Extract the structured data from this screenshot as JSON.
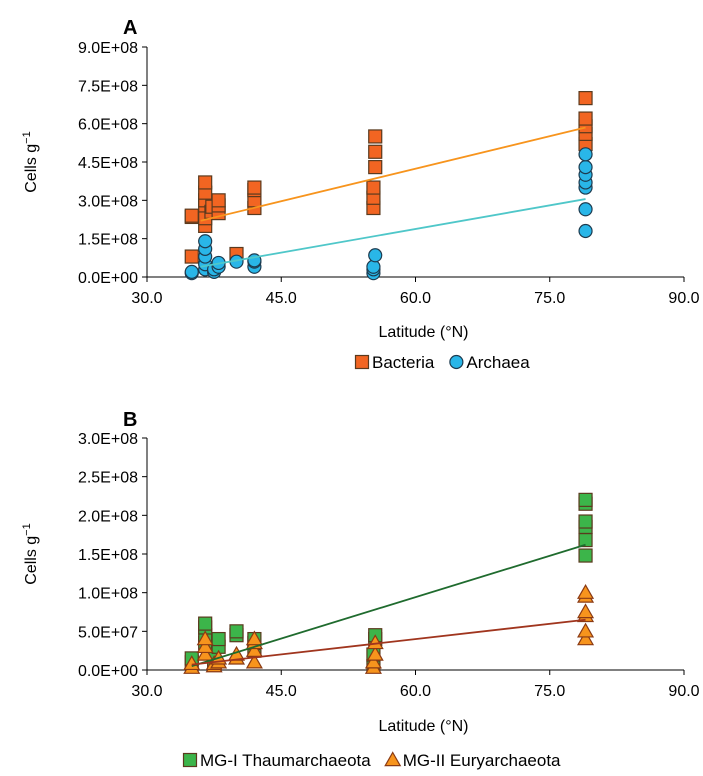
{
  "chart_data": [
    {
      "panel_label": "A",
      "type": "scatter",
      "ylabel": "Cells g",
      "ylabel_superscript": "−1",
      "xlabel": "Latitude (°N)",
      "xlim": [
        30,
        90
      ],
      "ylim": [
        0,
        900000000
      ],
      "x_ticks": [
        "30.0",
        "45.0",
        "60.0",
        "75.0",
        "90.0"
      ],
      "x_tick_values": [
        30,
        45,
        60,
        75,
        90
      ],
      "y_ticks": [
        "0.0E+00",
        "1.5E+08",
        "3.0E+08",
        "4.5E+08",
        "6.0E+08",
        "7.5E+08",
        "9.0E+08"
      ],
      "y_tick_values": [
        0,
        150000000,
        300000000,
        450000000,
        600000000,
        750000000,
        900000000
      ],
      "legend_position": "bottom",
      "series": [
        {
          "name": "Bacteria",
          "marker": "square",
          "color": "#f26522",
          "line_color": "#f7941d",
          "trendline": [
            [
              36,
              220000000
            ],
            [
              79,
              585000000
            ]
          ],
          "points": [
            [
              35,
              80000000
            ],
            [
              35,
              235000000
            ],
            [
              35,
              240000000
            ],
            [
              36.5,
              200000000
            ],
            [
              36.5,
              230000000
            ],
            [
              36.5,
              280000000
            ],
            [
              36.5,
              300000000
            ],
            [
              36.5,
              330000000
            ],
            [
              36.5,
              370000000
            ],
            [
              37.2,
              255000000
            ],
            [
              37.3,
              275000000
            ],
            [
              38,
              250000000
            ],
            [
              38,
              280000000
            ],
            [
              38,
              300000000
            ],
            [
              40,
              90000000
            ],
            [
              42,
              270000000
            ],
            [
              42,
              300000000
            ],
            [
              42,
              340000000
            ],
            [
              42,
              350000000
            ],
            [
              55.3,
              270000000
            ],
            [
              55.3,
              310000000
            ],
            [
              55.3,
              350000000
            ],
            [
              55.5,
              430000000
            ],
            [
              55.5,
              490000000
            ],
            [
              55.5,
              550000000
            ],
            [
              79,
              520000000
            ],
            [
              79,
              560000000
            ],
            [
              79,
              590000000
            ],
            [
              79,
              620000000
            ],
            [
              79,
              700000000
            ]
          ]
        },
        {
          "name": "Archaea",
          "marker": "circle",
          "color": "#29b6e8",
          "line_color": "#4fc7c9",
          "trendline": [
            [
              36,
              40000000
            ],
            [
              79,
              305000000
            ]
          ],
          "points": [
            [
              35,
              15000000
            ],
            [
              35,
              20000000
            ],
            [
              36.5,
              30000000
            ],
            [
              36.5,
              50000000
            ],
            [
              36.5,
              80000000
            ],
            [
              36.5,
              110000000
            ],
            [
              36.5,
              140000000
            ],
            [
              37.5,
              20000000
            ],
            [
              37.5,
              30000000
            ],
            [
              38,
              40000000
            ],
            [
              38,
              55000000
            ],
            [
              40,
              60000000
            ],
            [
              42,
              40000000
            ],
            [
              42,
              60000000
            ],
            [
              42,
              65000000
            ],
            [
              55.3,
              15000000
            ],
            [
              55.3,
              30000000
            ],
            [
              55.3,
              40000000
            ],
            [
              55.5,
              85000000
            ],
            [
              79,
              180000000
            ],
            [
              79,
              265000000
            ],
            [
              79,
              350000000
            ],
            [
              79,
              370000000
            ],
            [
              79,
              400000000
            ],
            [
              79,
              430000000
            ],
            [
              79,
              480000000
            ]
          ]
        }
      ]
    },
    {
      "panel_label": "B",
      "type": "scatter",
      "ylabel": "Cells g",
      "ylabel_superscript": "−1",
      "xlabel": "Latitude (°N)",
      "xlim": [
        30,
        90
      ],
      "ylim": [
        0,
        300000000
      ],
      "x_ticks": [
        "30.0",
        "45.0",
        "60.0",
        "75.0",
        "90.0"
      ],
      "x_tick_values": [
        30,
        45,
        60,
        75,
        90
      ],
      "y_ticks": [
        "0.0E+00",
        "5.0E+07",
        "1.0E+08",
        "1.5E+08",
        "2.0E+08",
        "2.5E+08",
        "3.0E+08"
      ],
      "y_tick_values": [
        0,
        50000000,
        100000000,
        150000000,
        200000000,
        250000000,
        300000000
      ],
      "legend_position": "bottom",
      "series": [
        {
          "name": "MG-I Thaumarchaeota",
          "marker": "square",
          "color": "#3cb54a",
          "line_color": "#1f6b2e",
          "trendline": [
            [
              35,
              5000000
            ],
            [
              79,
              162000000
            ]
          ],
          "points": [
            [
              35,
              10000000
            ],
            [
              35,
              15000000
            ],
            [
              36.5,
              35000000
            ],
            [
              36.5,
              45000000
            ],
            [
              36.5,
              55000000
            ],
            [
              36.5,
              60000000
            ],
            [
              37.5,
              10000000
            ],
            [
              37.5,
              20000000
            ],
            [
              38,
              30000000
            ],
            [
              38,
              40000000
            ],
            [
              40,
              45000000
            ],
            [
              40,
              50000000
            ],
            [
              42,
              25000000
            ],
            [
              42,
              35000000
            ],
            [
              42,
              40000000
            ],
            [
              55.3,
              5000000
            ],
            [
              55.3,
              20000000
            ],
            [
              55.5,
              40000000
            ],
            [
              55.5,
              45000000
            ],
            [
              79,
              148000000
            ],
            [
              79,
              168000000
            ],
            [
              79,
              185000000
            ],
            [
              79,
              192000000
            ],
            [
              79,
              215000000
            ],
            [
              79,
              220000000
            ]
          ]
        },
        {
          "name": "MG-II Euryarchaeota",
          "marker": "triangle",
          "color": "#f7941d",
          "line_color": "#a0351e",
          "trendline": [
            [
              35,
              7000000
            ],
            [
              79,
              65000000
            ]
          ],
          "points": [
            [
              35,
              3000000
            ],
            [
              35,
              8000000
            ],
            [
              36.5,
              20000000
            ],
            [
              36.5,
              30000000
            ],
            [
              36.5,
              40000000
            ],
            [
              37.5,
              5000000
            ],
            [
              37.5,
              8000000
            ],
            [
              38,
              10000000
            ],
            [
              38,
              15000000
            ],
            [
              40,
              15000000
            ],
            [
              40,
              20000000
            ],
            [
              42,
              10000000
            ],
            [
              42,
              25000000
            ],
            [
              42,
              35000000
            ],
            [
              42,
              40000000
            ],
            [
              55.3,
              3000000
            ],
            [
              55.3,
              10000000
            ],
            [
              55.5,
              20000000
            ],
            [
              55.5,
              35000000
            ],
            [
              79,
              40000000
            ],
            [
              79,
              50000000
            ],
            [
              79,
              70000000
            ],
            [
              79,
              75000000
            ],
            [
              79,
              95000000
            ],
            [
              79,
              100000000
            ]
          ]
        }
      ]
    }
  ]
}
